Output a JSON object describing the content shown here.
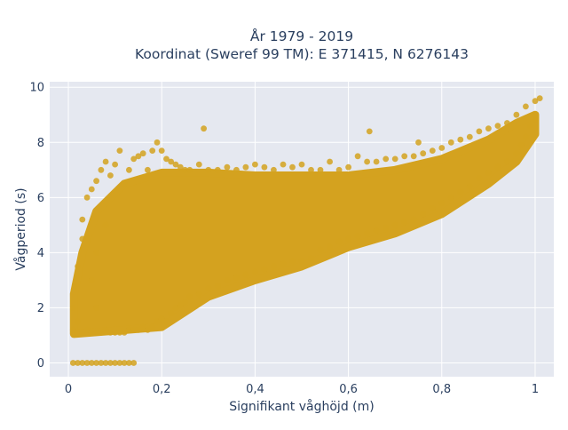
{
  "chart_data": {
    "type": "scatter",
    "title_line1": "År 1979 - 2019",
    "title_line2": "Koordinat (Sweref 99 TM): E 371415, N 6276143",
    "xlabel": "Signifikant våghöjd (m)",
    "ylabel": "Vågperiod (s)",
    "xlim": [
      -0.04,
      1.04
    ],
    "ylim": [
      -0.5,
      10.2
    ],
    "x_ticks": [
      {
        "value": 0,
        "label": "0"
      },
      {
        "value": 0.2,
        "label": "0,2"
      },
      {
        "value": 0.4,
        "label": "0,4"
      },
      {
        "value": 0.6,
        "label": "0,6"
      },
      {
        "value": 0.8,
        "label": "0,8"
      },
      {
        "value": 1.0,
        "label": "1"
      }
    ],
    "y_ticks": [
      {
        "value": 0,
        "label": "0"
      },
      {
        "value": 2,
        "label": "2"
      },
      {
        "value": 4,
        "label": "4"
      },
      {
        "value": 6,
        "label": "6"
      },
      {
        "value": 8,
        "label": "8"
      },
      {
        "value": 10,
        "label": "10"
      }
    ],
    "grid": true,
    "marker_color": "#d4a21f",
    "plot_bgcolor": "#e5e8f0",
    "series": [
      {
        "points": [
          [
            0.01,
            0.0
          ],
          [
            0.02,
            0.0
          ],
          [
            0.03,
            0.0
          ],
          [
            0.04,
            0.0
          ],
          [
            0.05,
            0.0
          ],
          [
            0.06,
            0.0
          ],
          [
            0.07,
            0.0
          ],
          [
            0.08,
            0.0
          ],
          [
            0.09,
            0.0
          ],
          [
            0.1,
            0.0
          ],
          [
            0.11,
            0.0
          ],
          [
            0.12,
            0.0
          ],
          [
            0.13,
            0.0
          ],
          [
            0.14,
            0.0
          ],
          [
            0.01,
            1.2
          ],
          [
            0.01,
            2.0
          ],
          [
            0.015,
            2.8
          ],
          [
            0.02,
            1.5
          ],
          [
            0.02,
            3.5
          ],
          [
            0.03,
            1.1
          ],
          [
            0.03,
            4.5
          ],
          [
            0.03,
            5.2
          ],
          [
            0.04,
            1.2
          ],
          [
            0.04,
            6.0
          ],
          [
            0.05,
            1.1
          ],
          [
            0.05,
            3.0
          ],
          [
            0.05,
            6.3
          ],
          [
            0.06,
            1.1
          ],
          [
            0.06,
            2.0
          ],
          [
            0.06,
            4.0
          ],
          [
            0.06,
            6.6
          ],
          [
            0.07,
            1.1
          ],
          [
            0.07,
            7.0
          ],
          [
            0.08,
            1.2
          ],
          [
            0.08,
            5.0
          ],
          [
            0.08,
            7.3
          ],
          [
            0.09,
            1.1
          ],
          [
            0.09,
            6.8
          ],
          [
            0.1,
            1.1
          ],
          [
            0.1,
            7.2
          ],
          [
            0.11,
            1.1
          ],
          [
            0.11,
            7.7
          ],
          [
            0.12,
            1.1
          ],
          [
            0.12,
            6.5
          ],
          [
            0.13,
            1.2
          ],
          [
            0.13,
            7.0
          ],
          [
            0.14,
            1.2
          ],
          [
            0.14,
            7.4
          ],
          [
            0.15,
            1.2
          ],
          [
            0.15,
            7.5
          ],
          [
            0.16,
            1.3
          ],
          [
            0.16,
            7.6
          ],
          [
            0.17,
            1.2
          ],
          [
            0.17,
            7.0
          ],
          [
            0.18,
            1.3
          ],
          [
            0.18,
            7.7
          ],
          [
            0.19,
            1.5
          ],
          [
            0.19,
            8.0
          ],
          [
            0.2,
            1.6
          ],
          [
            0.2,
            7.7
          ],
          [
            0.21,
            1.5
          ],
          [
            0.21,
            7.4
          ],
          [
            0.22,
            1.8
          ],
          [
            0.22,
            7.3
          ],
          [
            0.23,
            2.0
          ],
          [
            0.23,
            7.2
          ],
          [
            0.24,
            2.1
          ],
          [
            0.24,
            7.1
          ],
          [
            0.25,
            2.2
          ],
          [
            0.25,
            7.0
          ],
          [
            0.26,
            2.4
          ],
          [
            0.26,
            7.0
          ],
          [
            0.28,
            2.5
          ],
          [
            0.28,
            7.2
          ],
          [
            0.29,
            8.5
          ],
          [
            0.3,
            2.7
          ],
          [
            0.3,
            7.0
          ],
          [
            0.32,
            2.8
          ],
          [
            0.32,
            7.0
          ],
          [
            0.34,
            3.0
          ],
          [
            0.34,
            7.1
          ],
          [
            0.36,
            3.1
          ],
          [
            0.36,
            7.0
          ],
          [
            0.38,
            3.2
          ],
          [
            0.38,
            7.1
          ],
          [
            0.4,
            3.3
          ],
          [
            0.4,
            7.2
          ],
          [
            0.42,
            3.4
          ],
          [
            0.42,
            7.1
          ],
          [
            0.44,
            3.5
          ],
          [
            0.44,
            7.0
          ],
          [
            0.46,
            3.6
          ],
          [
            0.46,
            7.2
          ],
          [
            0.48,
            3.7
          ],
          [
            0.48,
            7.1
          ],
          [
            0.5,
            3.7
          ],
          [
            0.5,
            7.2
          ],
          [
            0.52,
            3.8
          ],
          [
            0.52,
            7.0
          ],
          [
            0.54,
            4.1
          ],
          [
            0.54,
            7.0
          ],
          [
            0.56,
            4.2
          ],
          [
            0.56,
            7.3
          ],
          [
            0.58,
            4.4
          ],
          [
            0.58,
            7.0
          ],
          [
            0.6,
            4.5
          ],
          [
            0.6,
            7.1
          ],
          [
            0.62,
            4.6
          ],
          [
            0.62,
            7.5
          ],
          [
            0.64,
            4.7
          ],
          [
            0.64,
            7.3
          ],
          [
            0.645,
            8.4
          ],
          [
            0.66,
            4.8
          ],
          [
            0.66,
            7.3
          ],
          [
            0.68,
            4.9
          ],
          [
            0.68,
            7.4
          ],
          [
            0.7,
            5.0
          ],
          [
            0.7,
            7.4
          ],
          [
            0.72,
            5.1
          ],
          [
            0.72,
            7.5
          ],
          [
            0.74,
            5.2
          ],
          [
            0.74,
            7.5
          ],
          [
            0.75,
            8.0
          ],
          [
            0.76,
            5.4
          ],
          [
            0.76,
            7.6
          ],
          [
            0.78,
            5.6
          ],
          [
            0.78,
            7.7
          ],
          [
            0.8,
            5.8
          ],
          [
            0.8,
            7.8
          ],
          [
            0.82,
            6.0
          ],
          [
            0.82,
            8.0
          ],
          [
            0.84,
            6.2
          ],
          [
            0.84,
            8.1
          ],
          [
            0.86,
            6.4
          ],
          [
            0.86,
            8.2
          ],
          [
            0.88,
            6.7
          ],
          [
            0.88,
            8.4
          ],
          [
            0.9,
            6.9
          ],
          [
            0.9,
            8.5
          ],
          [
            0.92,
            7.1
          ],
          [
            0.92,
            8.6
          ],
          [
            0.94,
            7.3
          ],
          [
            0.94,
            8.7
          ],
          [
            0.96,
            7.6
          ],
          [
            0.96,
            9.0
          ],
          [
            0.97,
            7.9
          ],
          [
            0.98,
            8.2
          ],
          [
            0.98,
            9.3
          ],
          [
            0.99,
            8.6
          ],
          [
            1.0,
            8.8
          ],
          [
            1.0,
            9.5
          ],
          [
            1.01,
            9.6
          ]
        ]
      }
    ]
  }
}
